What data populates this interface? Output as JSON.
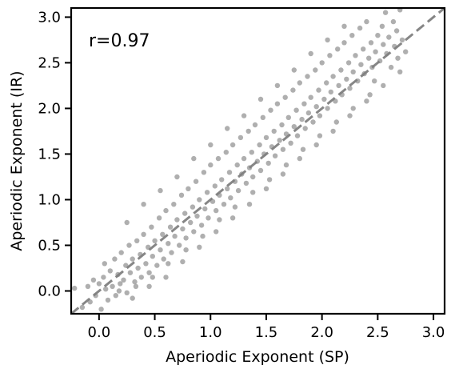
{
  "chart_data": {
    "type": "scatter",
    "xlabel": "Aperiodic Exponent (SP)",
    "ylabel": "Aperiodic Exponent (IR)",
    "xlim": [
      -0.25,
      3.1
    ],
    "ylim": [
      -0.25,
      3.1
    ],
    "xticks": [
      "0.0",
      "0.5",
      "1.0",
      "1.5",
      "2.0",
      "2.5",
      "3.0"
    ],
    "yticks": [
      "0.0",
      "0.5",
      "1.0",
      "1.5",
      "2.0",
      "2.5",
      "3.0"
    ],
    "annotation": "r=0.97",
    "reference_line": "identity (y = x), dashed",
    "grid": false,
    "point_color": "#7a7a7a",
    "line_color": "#7f7f7f",
    "series": [
      {
        "points": [
          [
            -0.22,
            0.03
          ],
          [
            -0.15,
            -0.18
          ],
          [
            -0.1,
            0.05
          ],
          [
            -0.08,
            -0.12
          ],
          [
            -0.05,
            0.12
          ],
          [
            -0.03,
            -0.05
          ],
          [
            0.0,
            0.08
          ],
          [
            0.02,
            -0.2
          ],
          [
            0.04,
            0.15
          ],
          [
            0.06,
            0.02
          ],
          [
            0.08,
            -0.1
          ],
          [
            0.1,
            0.22
          ],
          [
            0.12,
            0.05
          ],
          [
            0.14,
            0.35
          ],
          [
            0.15,
            -0.05
          ],
          [
            0.17,
            0.18
          ],
          [
            0.19,
            0.08
          ],
          [
            0.2,
            0.42
          ],
          [
            0.22,
            0.12
          ],
          [
            0.24,
            0.28
          ],
          [
            0.25,
            -0.02
          ],
          [
            0.27,
            0.5
          ],
          [
            0.28,
            0.2
          ],
          [
            0.3,
            0.35
          ],
          [
            0.32,
            0.1
          ],
          [
            0.34,
            0.55
          ],
          [
            0.35,
            0.25
          ],
          [
            0.37,
            0.4
          ],
          [
            0.38,
            0.15
          ],
          [
            0.4,
            0.62
          ],
          [
            0.42,
            0.3
          ],
          [
            0.44,
            0.48
          ],
          [
            0.45,
            0.2
          ],
          [
            0.47,
            0.7
          ],
          [
            0.48,
            0.38
          ],
          [
            0.5,
            0.55
          ],
          [
            0.52,
            0.28
          ],
          [
            0.54,
            0.8
          ],
          [
            0.55,
            0.45
          ],
          [
            0.57,
            0.62
          ],
          [
            0.58,
            0.35
          ],
          [
            0.6,
            0.88
          ],
          [
            0.62,
            0.52
          ],
          [
            0.64,
            0.7
          ],
          [
            0.65,
            0.42
          ],
          [
            0.67,
            0.95
          ],
          [
            0.68,
            0.6
          ],
          [
            0.7,
            0.78
          ],
          [
            0.72,
            0.5
          ],
          [
            0.74,
            1.05
          ],
          [
            0.75,
            0.68
          ],
          [
            0.77,
            0.85
          ],
          [
            0.78,
            0.58
          ],
          [
            0.8,
            1.12
          ],
          [
            0.82,
            0.75
          ],
          [
            0.84,
            0.92
          ],
          [
            0.85,
            0.65
          ],
          [
            0.87,
            1.2
          ],
          [
            0.88,
            0.82
          ],
          [
            0.9,
            1.0
          ],
          [
            0.92,
            0.72
          ],
          [
            0.94,
            1.3
          ],
          [
            0.95,
            0.9
          ],
          [
            0.97,
            1.08
          ],
          [
            0.98,
            0.8
          ],
          [
            1.0,
            1.38
          ],
          [
            1.02,
            0.98
          ],
          [
            1.04,
            1.15
          ],
          [
            1.05,
            0.88
          ],
          [
            1.07,
            1.45
          ],
          [
            1.08,
            1.05
          ],
          [
            1.1,
            1.22
          ],
          [
            1.12,
            0.95
          ],
          [
            1.14,
            1.52
          ],
          [
            1.15,
            1.12
          ],
          [
            1.17,
            1.3
          ],
          [
            1.18,
            1.02
          ],
          [
            1.2,
            1.6
          ],
          [
            1.22,
            1.2
          ],
          [
            1.24,
            1.38
          ],
          [
            1.25,
            1.1
          ],
          [
            1.27,
            1.68
          ],
          [
            1.28,
            1.28
          ],
          [
            1.3,
            1.45
          ],
          [
            1.32,
            1.18
          ],
          [
            1.34,
            1.75
          ],
          [
            1.35,
            1.35
          ],
          [
            1.37,
            1.52
          ],
          [
            1.38,
            1.25
          ],
          [
            1.4,
            1.82
          ],
          [
            1.42,
            1.42
          ],
          [
            1.44,
            1.6
          ],
          [
            1.45,
            1.32
          ],
          [
            1.47,
            1.9
          ],
          [
            1.48,
            1.5
          ],
          [
            1.5,
            1.68
          ],
          [
            1.52,
            1.4
          ],
          [
            1.54,
            1.98
          ],
          [
            1.55,
            1.58
          ],
          [
            1.57,
            1.75
          ],
          [
            1.58,
            1.48
          ],
          [
            1.6,
            2.05
          ],
          [
            1.62,
            1.65
          ],
          [
            1.64,
            1.82
          ],
          [
            1.65,
            1.55
          ],
          [
            1.67,
            2.12
          ],
          [
            1.68,
            1.72
          ],
          [
            1.7,
            1.9
          ],
          [
            1.72,
            1.62
          ],
          [
            1.74,
            2.2
          ],
          [
            1.75,
            1.8
          ],
          [
            1.77,
            1.98
          ],
          [
            1.78,
            1.7
          ],
          [
            1.8,
            2.28
          ],
          [
            1.82,
            1.88
          ],
          [
            1.84,
            2.05
          ],
          [
            1.85,
            1.78
          ],
          [
            1.87,
            2.35
          ],
          [
            1.88,
            1.95
          ],
          [
            1.9,
            2.12
          ],
          [
            1.92,
            1.85
          ],
          [
            1.94,
            2.42
          ],
          [
            1.95,
            2.02
          ],
          [
            1.97,
            2.2
          ],
          [
            1.98,
            1.92
          ],
          [
            2.0,
            2.5
          ],
          [
            2.02,
            2.1
          ],
          [
            2.04,
            2.28
          ],
          [
            2.05,
            2.0
          ],
          [
            2.07,
            2.58
          ],
          [
            2.08,
            2.18
          ],
          [
            2.1,
            2.35
          ],
          [
            2.12,
            2.08
          ],
          [
            2.14,
            2.65
          ],
          [
            2.15,
            2.25
          ],
          [
            2.17,
            2.42
          ],
          [
            2.18,
            2.15
          ],
          [
            2.2,
            2.72
          ],
          [
            2.22,
            2.32
          ],
          [
            2.24,
            2.5
          ],
          [
            2.25,
            2.22
          ],
          [
            2.27,
            2.8
          ],
          [
            2.28,
            2.4
          ],
          [
            2.3,
            2.58
          ],
          [
            2.32,
            2.3
          ],
          [
            2.34,
            2.88
          ],
          [
            2.35,
            2.48
          ],
          [
            2.37,
            2.65
          ],
          [
            2.38,
            2.38
          ],
          [
            2.4,
            2.95
          ],
          [
            2.42,
            2.55
          ],
          [
            2.44,
            2.72
          ],
          [
            2.45,
            2.45
          ],
          [
            2.47,
            2.3
          ],
          [
            2.48,
            2.62
          ],
          [
            2.5,
            2.8
          ],
          [
            2.52,
            2.52
          ],
          [
            2.54,
            2.9
          ],
          [
            2.55,
            2.7
          ],
          [
            2.57,
            3.05
          ],
          [
            2.58,
            2.6
          ],
          [
            2.6,
            2.78
          ],
          [
            2.62,
            2.45
          ],
          [
            2.64,
            2.95
          ],
          [
            2.65,
            2.68
          ],
          [
            2.67,
            2.85
          ],
          [
            2.68,
            2.55
          ],
          [
            2.7,
            3.08
          ],
          [
            2.72,
            2.75
          ],
          [
            2.75,
            2.62
          ],
          [
            0.05,
            0.3
          ],
          [
            0.18,
            0.0
          ],
          [
            0.33,
            0.05
          ],
          [
            0.48,
            0.15
          ],
          [
            0.62,
            0.3
          ],
          [
            0.78,
            0.45
          ],
          [
            0.93,
            0.6
          ],
          [
            1.08,
            0.78
          ],
          [
            1.22,
            0.92
          ],
          [
            1.38,
            1.08
          ],
          [
            1.53,
            1.22
          ],
          [
            1.68,
            1.38
          ],
          [
            1.83,
            1.55
          ],
          [
            1.98,
            1.7
          ],
          [
            2.13,
            1.85
          ],
          [
            2.28,
            2.0
          ],
          [
            2.43,
            2.15
          ],
          [
            0.25,
            0.75
          ],
          [
            0.4,
            0.95
          ],
          [
            0.55,
            1.1
          ],
          [
            0.7,
            1.25
          ],
          [
            0.85,
            1.45
          ],
          [
            1.0,
            1.6
          ],
          [
            1.15,
            1.78
          ],
          [
            1.3,
            1.92
          ],
          [
            1.45,
            2.1
          ],
          [
            1.6,
            2.25
          ],
          [
            1.75,
            2.42
          ],
          [
            1.9,
            2.6
          ],
          [
            2.05,
            2.75
          ],
          [
            2.2,
            2.9
          ],
          [
            0.3,
            -0.08
          ],
          [
            0.45,
            0.05
          ],
          [
            0.6,
            0.15
          ],
          [
            0.75,
            0.32
          ],
          [
            0.9,
            0.48
          ],
          [
            1.05,
            0.65
          ],
          [
            1.2,
            0.8
          ],
          [
            1.35,
            0.95
          ],
          [
            1.5,
            1.12
          ],
          [
            1.65,
            1.28
          ],
          [
            1.8,
            1.45
          ],
          [
            1.95,
            1.6
          ],
          [
            2.1,
            1.75
          ],
          [
            2.25,
            1.92
          ],
          [
            2.4,
            2.08
          ],
          [
            2.55,
            2.25
          ],
          [
            2.7,
            2.4
          ]
        ]
      }
    ]
  }
}
